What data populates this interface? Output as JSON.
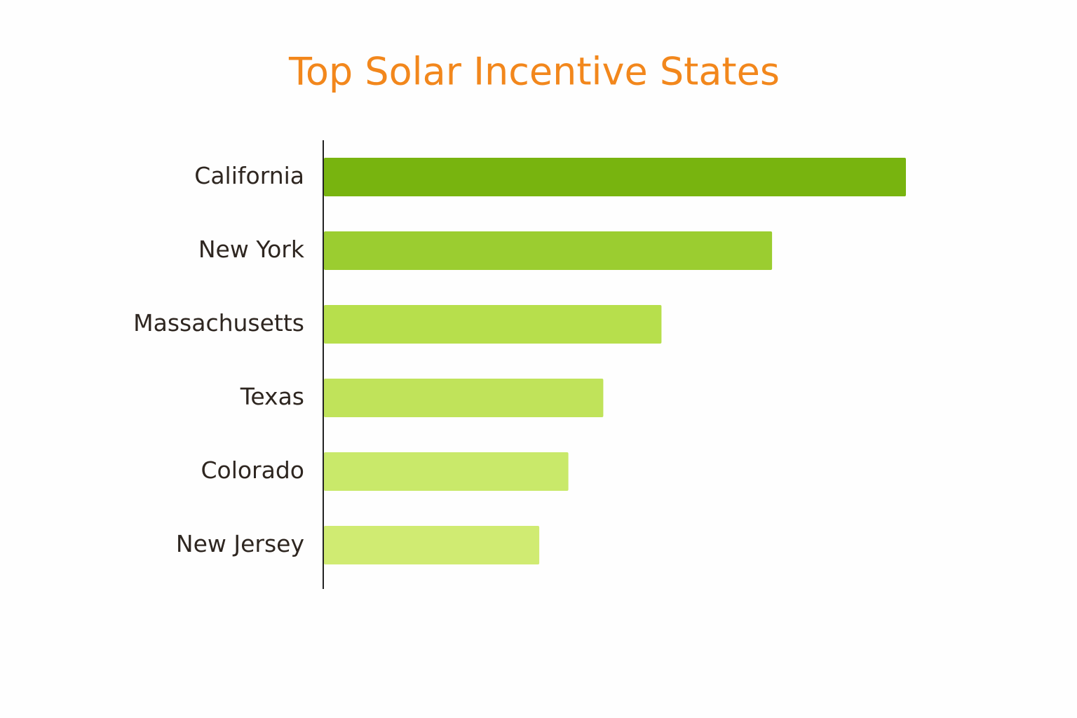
{
  "chart_data": {
    "type": "hbar",
    "title": "Top Solar Incentive States",
    "categories": [
      "California",
      "New York",
      "Massachusetts",
      "Texas",
      "Colorado",
      "New Jersey"
    ],
    "values": [
      100,
      77,
      58,
      48,
      42,
      37
    ],
    "colors": [
      "#78b40f",
      "#9bcd30",
      "#b7df4c",
      "#c0e35a",
      "#c9e96a",
      "#d0eb72"
    ],
    "xlim": [
      0,
      100
    ]
  }
}
